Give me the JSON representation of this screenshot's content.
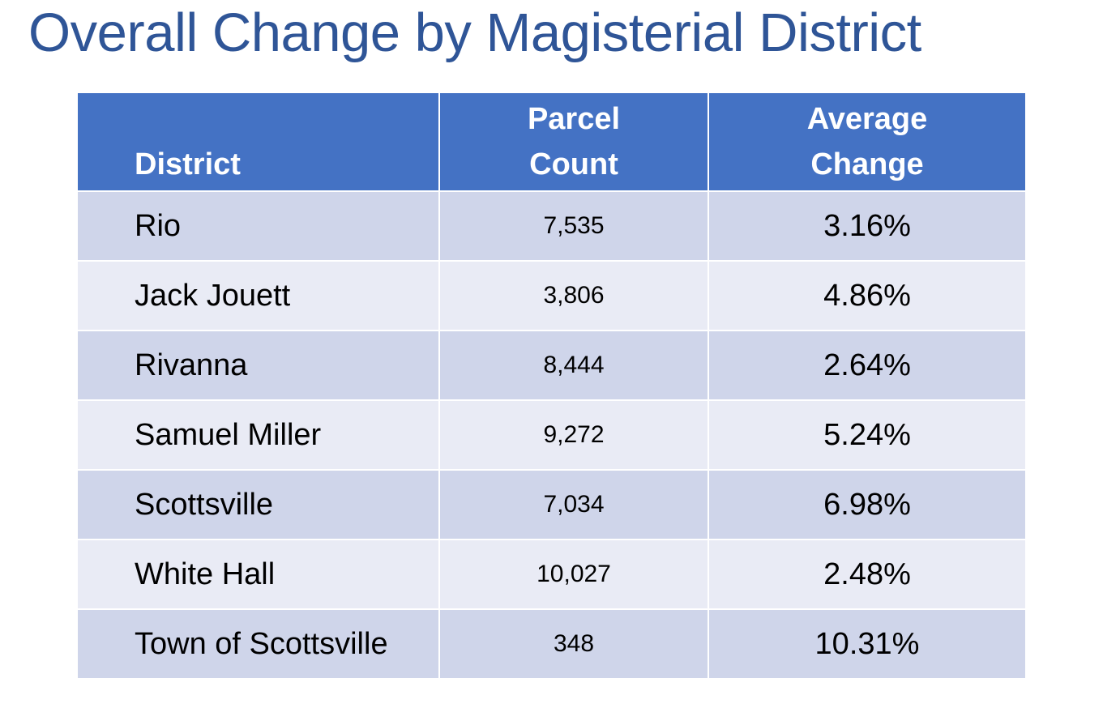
{
  "title": "Overall Change by Magisterial District",
  "table": {
    "headers": [
      "District",
      "Parcel Count",
      "Average Change"
    ],
    "header_lines": {
      "parcel": [
        "Parcel",
        "Count"
      ],
      "average": [
        "Average",
        "Change"
      ]
    },
    "rows": [
      [
        "Rio",
        "7,535",
        "3.16%"
      ],
      [
        "Jack Jouett",
        "3,806",
        "4.86%"
      ],
      [
        "Rivanna",
        "8,444",
        "2.64%"
      ],
      [
        "Samuel Miller",
        "9,272",
        "5.24%"
      ],
      [
        "Scottsville",
        "7,034",
        "6.98%"
      ],
      [
        "White Hall",
        "10,027",
        "2.48%"
      ],
      [
        "Town of Scottsville",
        "348",
        "10.31%"
      ]
    ]
  },
  "colors": {
    "title": "#2F5597",
    "header": "#4472C4",
    "row_odd": "#CFD5EA",
    "row_even": "#E9EBF5"
  }
}
